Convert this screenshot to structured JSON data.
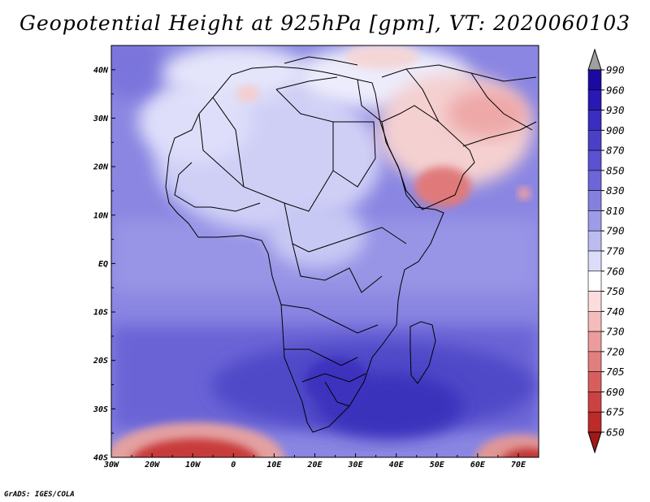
{
  "title": "Geopotential Height at 925hPa [gpm], VT: 2020060103",
  "credit": "GrADS: IGES/COLA",
  "map": {
    "lon_range": [
      -30,
      75
    ],
    "lat_range": [
      -40,
      45
    ],
    "lat_labels": [
      "40N",
      "30N",
      "20N",
      "10N",
      "EQ",
      "10S",
      "20S",
      "30S",
      "40S"
    ],
    "lon_labels": [
      "30W",
      "20W",
      "10W",
      "0",
      "10E",
      "20E",
      "30E",
      "40E",
      "50E",
      "60E",
      "70E"
    ],
    "lat_values": [
      40,
      30,
      20,
      10,
      0,
      -10,
      -20,
      -30,
      -40
    ],
    "lon_values": [
      -30,
      -20,
      -10,
      0,
      10,
      20,
      30,
      40,
      50,
      60,
      70
    ]
  },
  "colorbar": {
    "levels": [
      990,
      960,
      930,
      900,
      870,
      850,
      830,
      810,
      790,
      770,
      760,
      750,
      740,
      730,
      720,
      705,
      690,
      675,
      650
    ],
    "colors": [
      "#a0a0a0",
      "#1c0aa0",
      "#2a18b4",
      "#3a2ec0",
      "#4a40c8",
      "#5a52d0",
      "#6c66d8",
      "#8480e0",
      "#9e9ce8",
      "#bcbcf0",
      "#dcdcfa",
      "#ffffff",
      "#fcdcdc",
      "#f4bcbc",
      "#ec9c9c",
      "#e27e7e",
      "#d85e5e",
      "#cc4242",
      "#bc2a2a",
      "#a01818"
    ]
  },
  "chart_data": {
    "type": "heatmap",
    "title": "Geopotential Height at 925hPa [gpm], VT: 2020060103",
    "variable": "Geopotential Height",
    "pressure_level_hPa": 925,
    "units": "gpm",
    "valid_time": "2020060103",
    "x_range": [
      -30,
      75
    ],
    "y_range": [
      -40,
      45
    ],
    "levels": [
      650,
      675,
      690,
      705,
      720,
      730,
      740,
      750,
      760,
      770,
      790,
      810,
      830,
      850,
      870,
      900,
      930,
      960,
      990
    ]
  }
}
